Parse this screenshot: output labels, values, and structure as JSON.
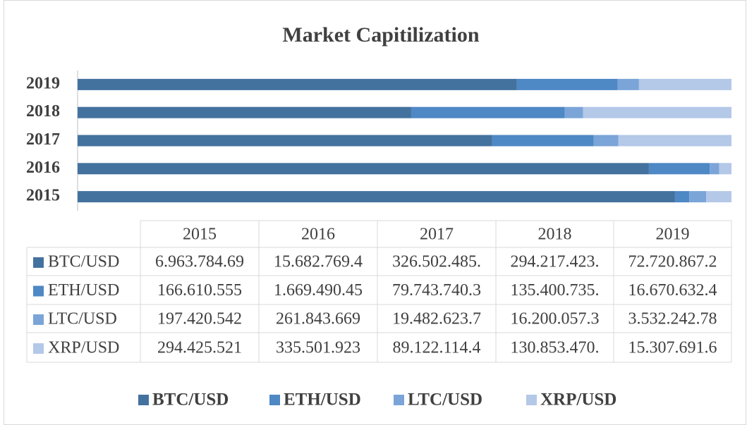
{
  "chart_data": {
    "type": "bar",
    "orientation": "horizontal",
    "stacking": "percent",
    "title": "Market Capitilization",
    "categories": [
      "2015",
      "2016",
      "2017",
      "2018",
      "2019"
    ],
    "series": [
      {
        "name": "BTC/USD",
        "color": "#44729f",
        "values": [
          6963784690,
          15682769400,
          326502485000,
          294217423000,
          72720867200
        ],
        "value_labels": [
          "6.963.784.69",
          "15.682.769.4",
          "326.502.485.",
          "294.217.423.",
          "72.720.867.2"
        ]
      },
      {
        "name": "ETH/USD",
        "color": "#4e88c5",
        "values": [
          166610555,
          1669490450,
          79743740300,
          135400735000,
          16670632400
        ],
        "value_labels": [
          "166.610.555",
          "1.669.490.45",
          "79.743.740.3",
          "135.400.735.",
          "16.670.632.4"
        ]
      },
      {
        "name": "LTC/USD",
        "color": "#7ba5d8",
        "values": [
          197420542,
          261843669,
          19482623700,
          16200057300,
          3532242780
        ],
        "value_labels": [
          "197.420.542",
          "261.843.669",
          "19.482.623.7",
          "16.200.057.3",
          "3.532.242.78"
        ]
      },
      {
        "name": "XRP/USD",
        "color": "#b4c8e8",
        "values": [
          294425521,
          335501923,
          89122114400,
          130853470000,
          15307691600
        ],
        "value_labels": [
          "294.425.521",
          "335.501.923",
          "89.122.114.4",
          "130.853.470.",
          "15.307.691.6"
        ]
      }
    ],
    "legend": "bottom",
    "data_table": true
  }
}
